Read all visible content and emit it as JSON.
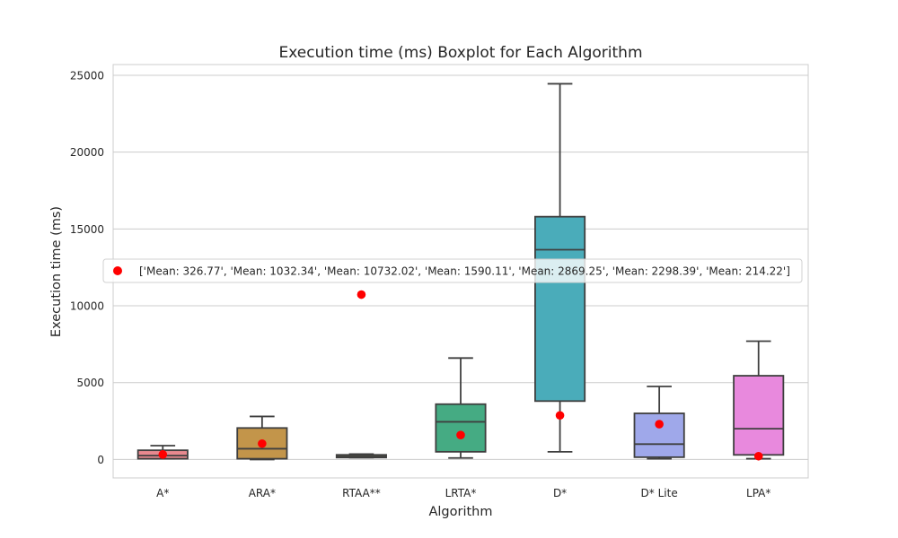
{
  "chart_data": {
    "type": "box",
    "title": "Execution time (ms) Boxplot for Each Algorithm",
    "xlabel": "Algorithm",
    "ylabel": "Execution time (ms)",
    "ylim": [
      -1200,
      25700
    ],
    "yticks": [
      0,
      5000,
      10000,
      15000,
      20000,
      25000
    ],
    "grid": true,
    "legend_position": "center-right",
    "legend_text": "['Mean: 326.77', 'Mean: 1032.34', 'Mean: 10732.02', 'Mean: 1590.11', 'Mean: 2869.25', 'Mean: 2298.39', 'Mean: 214.22']",
    "mean_marker_color": "#ff0000",
    "box_edge_color": "#3f3f3f",
    "categories": [
      "A*",
      "ARA*",
      "RTAA**",
      "LRTA*",
      "D*",
      "D* Lite",
      "LPA*"
    ],
    "boxes": [
      {
        "label": "A*",
        "whisker_low": 50,
        "q1": 50,
        "median": 250,
        "q3": 600,
        "whisker_high": 900,
        "mean": 326.77,
        "color": "#e8898f"
      },
      {
        "label": "ARA*",
        "whisker_low": 0,
        "q1": 50,
        "median": 700,
        "q3": 2050,
        "whisker_high": 2800,
        "mean": 1032.34,
        "color": "#c3954a"
      },
      {
        "label": "RTAA**",
        "whisker_low": 120,
        "q1": 150,
        "median": 200,
        "q3": 280,
        "whisker_high": 350,
        "mean": 10732.02,
        "color": "#9fa24b"
      },
      {
        "label": "LRTA*",
        "whisker_low": 100,
        "q1": 500,
        "median": 2450,
        "q3": 3600,
        "whisker_high": 6600,
        "mean": 1590.11,
        "color": "#45ab83"
      },
      {
        "label": "D*",
        "whisker_low": 500,
        "q1": 3800,
        "median": 13650,
        "q3": 15800,
        "whisker_high": 24450,
        "mean": 2869.25,
        "color": "#4aacba"
      },
      {
        "label": "D* Lite",
        "whisker_low": 50,
        "q1": 150,
        "median": 1000,
        "q3": 3000,
        "whisker_high": 4750,
        "mean": 2298.39,
        "color": "#9fa8ea"
      },
      {
        "label": "LPA*",
        "whisker_low": 50,
        "q1": 300,
        "median": 2000,
        "q3": 5450,
        "whisker_high": 7700,
        "mean": 214.22,
        "color": "#e889dd"
      }
    ]
  }
}
